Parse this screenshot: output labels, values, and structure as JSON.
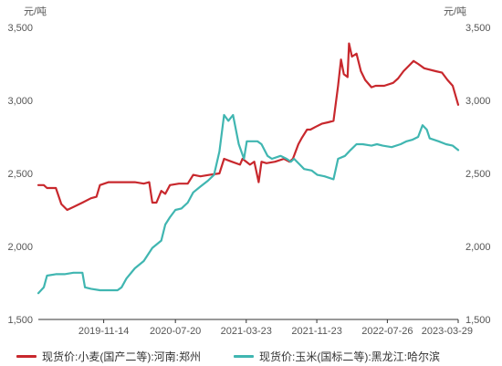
{
  "chart_data": {
    "type": "line",
    "y_unit_left": "元/吨",
    "y_unit_right": "元/吨",
    "ylim": [
      1500,
      3500
    ],
    "y_ticks": [
      1500,
      2000,
      2500,
      3000,
      3500
    ],
    "y_tick_labels": [
      "1,500",
      "2,000",
      "2,500",
      "3,000",
      "3,500"
    ],
    "x_range": [
      "2019-04-01",
      "2023-03-29"
    ],
    "x_ticks": [
      "2019-11-14",
      "2020-07-20",
      "2021-03-23",
      "2021-11-23",
      "2022-07-26",
      "2023-03-29"
    ],
    "grid": false,
    "legend_position": "bottom",
    "series": [
      {
        "name": "现货价:小麦(国产二等):河南:郑州",
        "color": "#c8282d",
        "points": [
          [
            "2019-04-01",
            2420
          ],
          [
            "2019-04-20",
            2420
          ],
          [
            "2019-05-01",
            2400
          ],
          [
            "2019-06-01",
            2400
          ],
          [
            "2019-06-20",
            2290
          ],
          [
            "2019-07-10",
            2250
          ],
          [
            "2019-08-01",
            2270
          ],
          [
            "2019-09-01",
            2300
          ],
          [
            "2019-10-01",
            2330
          ],
          [
            "2019-10-20",
            2340
          ],
          [
            "2019-11-01",
            2420
          ],
          [
            "2019-12-01",
            2440
          ],
          [
            "2020-01-15",
            2440
          ],
          [
            "2020-03-01",
            2440
          ],
          [
            "2020-04-01",
            2430
          ],
          [
            "2020-04-20",
            2440
          ],
          [
            "2020-05-01",
            2300
          ],
          [
            "2020-05-15",
            2300
          ],
          [
            "2020-06-01",
            2380
          ],
          [
            "2020-06-15",
            2360
          ],
          [
            "2020-07-01",
            2420
          ],
          [
            "2020-08-01",
            2430
          ],
          [
            "2020-09-01",
            2430
          ],
          [
            "2020-09-20",
            2490
          ],
          [
            "2020-10-15",
            2480
          ],
          [
            "2020-11-15",
            2490
          ],
          [
            "2020-12-20",
            2500
          ],
          [
            "2021-01-05",
            2600
          ],
          [
            "2021-02-01",
            2580
          ],
          [
            "2021-03-01",
            2560
          ],
          [
            "2021-03-10",
            2600
          ],
          [
            "2021-04-05",
            2560
          ],
          [
            "2021-04-20",
            2580
          ],
          [
            "2021-05-05",
            2440
          ],
          [
            "2021-05-15",
            2580
          ],
          [
            "2021-06-01",
            2570
          ],
          [
            "2021-07-01",
            2580
          ],
          [
            "2021-08-01",
            2600
          ],
          [
            "2021-08-20",
            2580
          ],
          [
            "2021-09-01",
            2600
          ],
          [
            "2021-09-20",
            2700
          ],
          [
            "2021-10-01",
            2740
          ],
          [
            "2021-10-20",
            2800
          ],
          [
            "2021-11-01",
            2800
          ],
          [
            "2021-11-20",
            2820
          ],
          [
            "2021-12-10",
            2840
          ],
          [
            "2022-01-01",
            2850
          ],
          [
            "2022-01-20",
            2860
          ],
          [
            "2022-02-05",
            3100
          ],
          [
            "2022-02-15",
            3280
          ],
          [
            "2022-02-25",
            3180
          ],
          [
            "2022-03-10",
            3160
          ],
          [
            "2022-03-15",
            3390
          ],
          [
            "2022-03-25",
            3300
          ],
          [
            "2022-04-10",
            3320
          ],
          [
            "2022-04-25",
            3200
          ],
          [
            "2022-05-10",
            3140
          ],
          [
            "2022-06-01",
            3090
          ],
          [
            "2022-06-15",
            3100
          ],
          [
            "2022-07-15",
            3100
          ],
          [
            "2022-08-15",
            3120
          ],
          [
            "2022-09-01",
            3150
          ],
          [
            "2022-09-20",
            3200
          ],
          [
            "2022-10-10",
            3240
          ],
          [
            "2022-10-25",
            3270
          ],
          [
            "2022-11-10",
            3250
          ],
          [
            "2022-12-01",
            3220
          ],
          [
            "2023-01-10",
            3200
          ],
          [
            "2023-02-01",
            3190
          ],
          [
            "2023-02-20",
            3140
          ],
          [
            "2023-03-10",
            3100
          ],
          [
            "2023-03-29",
            2970
          ]
        ]
      },
      {
        "name": "现货价:玉米(国标二等):黑龙江:哈尔滨",
        "color": "#40b6b1",
        "points": [
          [
            "2019-04-01",
            1680
          ],
          [
            "2019-04-20",
            1720
          ],
          [
            "2019-05-01",
            1800
          ],
          [
            "2019-06-01",
            1810
          ],
          [
            "2019-07-01",
            1810
          ],
          [
            "2019-08-01",
            1820
          ],
          [
            "2019-09-01",
            1820
          ],
          [
            "2019-09-10",
            1720
          ],
          [
            "2019-10-01",
            1710
          ],
          [
            "2019-11-01",
            1700
          ],
          [
            "2019-12-01",
            1700
          ],
          [
            "2020-01-01",
            1700
          ],
          [
            "2020-01-15",
            1720
          ],
          [
            "2020-02-01",
            1780
          ],
          [
            "2020-03-01",
            1850
          ],
          [
            "2020-04-01",
            1900
          ],
          [
            "2020-05-01",
            1990
          ],
          [
            "2020-06-01",
            2040
          ],
          [
            "2020-06-15",
            2150
          ],
          [
            "2020-07-01",
            2200
          ],
          [
            "2020-07-20",
            2250
          ],
          [
            "2020-08-10",
            2260
          ],
          [
            "2020-09-01",
            2300
          ],
          [
            "2020-09-20",
            2370
          ],
          [
            "2020-10-15",
            2410
          ],
          [
            "2020-11-10",
            2450
          ],
          [
            "2020-12-01",
            2490
          ],
          [
            "2020-12-20",
            2650
          ],
          [
            "2021-01-05",
            2900
          ],
          [
            "2021-01-20",
            2860
          ],
          [
            "2021-02-05",
            2900
          ],
          [
            "2021-02-25",
            2700
          ],
          [
            "2021-03-15",
            2600
          ],
          [
            "2021-03-25",
            2720
          ],
          [
            "2021-05-01",
            2720
          ],
          [
            "2021-05-15",
            2700
          ],
          [
            "2021-06-05",
            2620
          ],
          [
            "2021-06-20",
            2600
          ],
          [
            "2021-07-20",
            2620
          ],
          [
            "2021-08-10",
            2600
          ],
          [
            "2021-08-25",
            2580
          ],
          [
            "2021-09-05",
            2600
          ],
          [
            "2021-09-25",
            2560
          ],
          [
            "2021-10-10",
            2530
          ],
          [
            "2021-11-05",
            2520
          ],
          [
            "2021-11-25",
            2490
          ],
          [
            "2021-12-20",
            2480
          ],
          [
            "2022-01-20",
            2460
          ],
          [
            "2022-02-05",
            2600
          ],
          [
            "2022-03-01",
            2620
          ],
          [
            "2022-03-20",
            2660
          ],
          [
            "2022-04-10",
            2700
          ],
          [
            "2022-05-01",
            2700
          ],
          [
            "2022-06-01",
            2690
          ],
          [
            "2022-06-20",
            2700
          ],
          [
            "2022-07-10",
            2690
          ],
          [
            "2022-08-10",
            2680
          ],
          [
            "2022-09-10",
            2700
          ],
          [
            "2022-10-01",
            2720
          ],
          [
            "2022-10-20",
            2730
          ],
          [
            "2022-11-10",
            2750
          ],
          [
            "2022-11-25",
            2830
          ],
          [
            "2022-12-10",
            2800
          ],
          [
            "2022-12-20",
            2740
          ],
          [
            "2023-01-20",
            2720
          ],
          [
            "2023-02-15",
            2700
          ],
          [
            "2023-03-10",
            2690
          ],
          [
            "2023-03-29",
            2660
          ]
        ]
      }
    ]
  }
}
